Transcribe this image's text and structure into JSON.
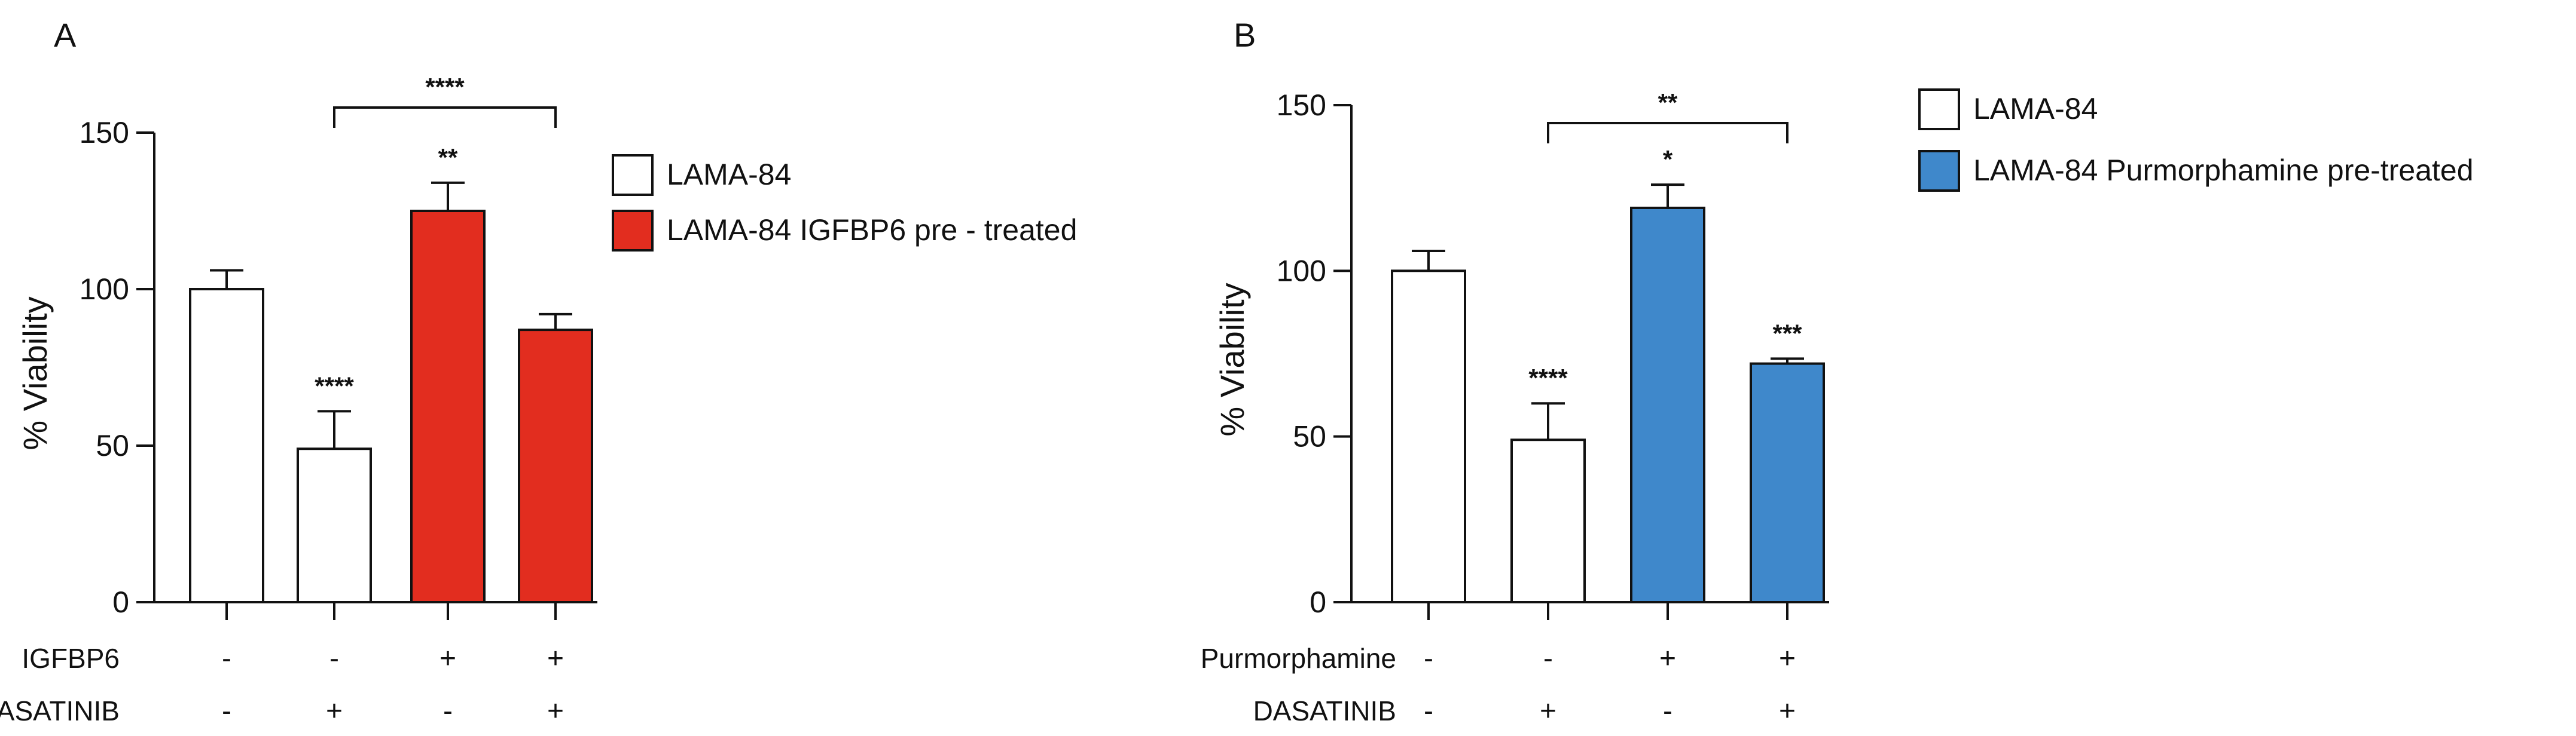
{
  "chart_data": [
    {
      "type": "bar",
      "panel": "A",
      "ylabel": "% Viability",
      "ylim": [
        0,
        150
      ],
      "yticks": [
        0,
        50,
        100,
        150
      ],
      "colors": {
        "control": "#ffffff",
        "treated": "#e22d1f"
      },
      "legend": [
        "LAMA-84",
        "LAMA-84 IGFBP6 pre - treated"
      ],
      "bars": [
        {
          "value": 100,
          "error": 6,
          "group": "control",
          "sig": ""
        },
        {
          "value": 49,
          "error": 12,
          "group": "control",
          "sig": "****"
        },
        {
          "value": 125,
          "error": 9,
          "group": "treated",
          "sig": "**"
        },
        {
          "value": 87,
          "error": 5,
          "group": "treated",
          "sig": ""
        }
      ],
      "bracket": {
        "from": 1,
        "to": 3,
        "label": "****"
      },
      "conditions": [
        {
          "name": "IGFBP6",
          "signs": [
            "-",
            "-",
            "+",
            "+"
          ]
        },
        {
          "name": "DASATINIB",
          "signs": [
            "-",
            "+",
            "-",
            "+"
          ]
        }
      ]
    },
    {
      "type": "bar",
      "panel": "B",
      "ylabel": "% Viability",
      "ylim": [
        0,
        150
      ],
      "yticks": [
        0,
        50,
        100,
        150
      ],
      "colors": {
        "control": "#ffffff",
        "treated": "#3f88cb"
      },
      "legend": [
        "LAMA-84",
        "LAMA-84 Purmorphamine pre-treated"
      ],
      "bars": [
        {
          "value": 100,
          "error": 6,
          "group": "control",
          "sig": ""
        },
        {
          "value": 49,
          "error": 11,
          "group": "control",
          "sig": "****"
        },
        {
          "value": 119,
          "error": 7,
          "group": "treated",
          "sig": "*"
        },
        {
          "value": 72,
          "error": 1.5,
          "group": "treated",
          "sig": "***"
        }
      ],
      "bracket": {
        "from": 1,
        "to": 3,
        "label": "**"
      },
      "conditions": [
        {
          "name": "Purmorphamine",
          "signs": [
            "-",
            "-",
            "+",
            "+"
          ]
        },
        {
          "name": "DASATINIB",
          "signs": [
            "-",
            "+",
            "-",
            "+"
          ]
        }
      ]
    }
  ]
}
